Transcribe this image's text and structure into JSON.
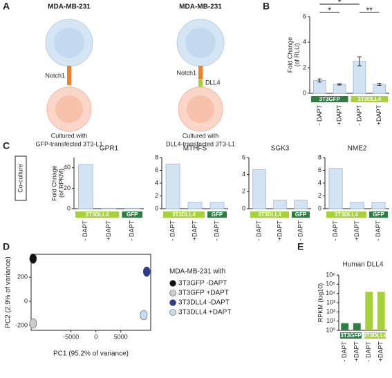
{
  "diagram": {
    "panel": "A",
    "cells": [
      {
        "title": "MDA-MB-231",
        "receptor": "Notch1",
        "caption": [
          "Cultured with",
          "GFP-transfected 3T3-L1"
        ]
      },
      {
        "title": "MDA-MB-231",
        "receptor": "Notch1",
        "ligand": "DLL4",
        "caption": [
          "Cultured with",
          "DLL4-transfected 3T3-L1"
        ]
      }
    ]
  },
  "side_label": "Co-culture",
  "chart_data": [
    {
      "type": "bar",
      "panel": "B",
      "y_label": [
        "Fold Change",
        "(of RLU)"
      ],
      "categories": [
        "- DAPT",
        "+DAPT",
        "- DAPT",
        "+DAPT"
      ],
      "values": [
        1.0,
        0.7,
        2.5,
        0.7
      ],
      "errors": [
        0.12,
        0.05,
        0.35,
        0.08
      ],
      "color": "#d3e3f4",
      "ylim": [
        0,
        6
      ],
      "yticks": [
        0,
        2,
        4,
        6
      ],
      "groups": [
        {
          "label": "3T3GFP",
          "color": "#2e7d43",
          "span": 2
        },
        {
          "label": "3T3DLL4",
          "color": "#a6d13c",
          "span": 2
        }
      ],
      "significance": [
        "*",
        "*",
        "**"
      ]
    },
    {
      "type": "bar",
      "panel": "C",
      "title": "GPR1",
      "y_label": [
        "Fold Chnage",
        "(of RPKM)"
      ],
      "categories": [
        "- DAPT",
        "+DAPT",
        "- DAPT"
      ],
      "values": [
        43,
        0.5,
        0.5
      ],
      "color": "#d3e3f4",
      "ylim": [
        0,
        50
      ],
      "yticks": [
        0,
        20,
        40
      ],
      "groups": [
        {
          "label": "3T3DLL4",
          "color": "#a6d13c",
          "span": 2
        },
        {
          "label": "GFP",
          "color": "#2e7d43",
          "span": 1
        }
      ]
    },
    {
      "type": "bar",
      "title": "MTHFS",
      "categories": [
        "- DAPT",
        "+DAPT",
        "- DAPT"
      ],
      "values": [
        7,
        1,
        1
      ],
      "color": "#d3e3f4",
      "ylim": [
        0,
        8
      ],
      "yticks": [
        0,
        2,
        4,
        6,
        8
      ],
      "groups": [
        {
          "label": "3T3DLL4",
          "color": "#a6d13c",
          "span": 2
        },
        {
          "label": "GFP",
          "color": "#2e7d43",
          "span": 1
        }
      ]
    },
    {
      "type": "bar",
      "title": "SGK3",
      "categories": [
        "- DAPT",
        "+DAPT",
        "- DAPT"
      ],
      "values": [
        4.6,
        1,
        1
      ],
      "color": "#d3e3f4",
      "ylim": [
        0,
        6
      ],
      "yticks": [
        0,
        2,
        4,
        6
      ],
      "groups": [
        {
          "label": "3T3DLL4",
          "color": "#a6d13c",
          "span": 2
        },
        {
          "label": "GFP",
          "color": "#2e7d43",
          "span": 1
        }
      ]
    },
    {
      "type": "bar",
      "title": "NME2",
      "categories": [
        "- DAPT",
        "+DAPT",
        "- DAPT"
      ],
      "values": [
        6.3,
        1,
        1
      ],
      "color": "#d3e3f4",
      "ylim": [
        0,
        8
      ],
      "yticks": [
        0,
        2,
        4,
        6,
        8
      ],
      "groups": [
        {
          "label": "3T3DLL4",
          "color": "#a6d13c",
          "span": 2
        },
        {
          "label": "GFP",
          "color": "#2e7d43",
          "span": 1
        }
      ]
    },
    {
      "type": "scatter",
      "panel": "D",
      "x_label": "PC1 (95.2% of variance)",
      "y_label": "PC2 (2.9% of variance)",
      "legend_title": "MDA-MB-231 with",
      "xlim": [
        -13000,
        11000
      ],
      "xticks": [
        -5000,
        0,
        5000
      ],
      "ylim": [
        -240,
        390
      ],
      "yticks": [
        -200,
        0,
        200
      ],
      "series": [
        {
          "name": "3T3GFP -DAPT",
          "color": "#111111",
          "x": [
            -12600
          ],
          "values": [
            354
          ]
        },
        {
          "name": "3T3GFP +DAPT",
          "color": "#cccccc",
          "x": [
            -12600
          ],
          "values": [
            -183
          ]
        },
        {
          "name": "3T3DLL4 -DAPT",
          "color": "#2b3f8c",
          "x": [
            10200
          ],
          "values": [
            246
          ]
        },
        {
          "name": "3T3DLL4 +DAPT",
          "color": "#c6dcf0",
          "x": [
            9600
          ],
          "values": [
            -114
          ]
        }
      ]
    },
    {
      "type": "bar",
      "panel": "E",
      "title": "Human DLL4",
      "y_label": [
        "RPKM (log10)"
      ],
      "log_scale": true,
      "categories": [
        "- DAPT",
        "+DAPT",
        "- DAPT",
        "+DAPT"
      ],
      "values": [
        6,
        6,
        15000,
        15000
      ],
      "colors": [
        "#2e7d43",
        "#2e7d43",
        "#a6d13c",
        "#a6d13c"
      ],
      "ylim": [
        1,
        1000000
      ],
      "yticks": [
        {
          "value": 1,
          "label": "10⁰"
        },
        {
          "value": 10,
          "label": "10¹"
        },
        {
          "value": 100,
          "label": "10²"
        },
        {
          "value": 1000,
          "label": "10³"
        },
        {
          "value": 10000,
          "label": "10⁴"
        },
        {
          "value": 100000,
          "label": "10⁵"
        },
        {
          "value": 1000000,
          "label": "10⁶"
        }
      ],
      "groups": [
        {
          "label": "3T3GFP",
          "color": "#2e7d43",
          "span": 2
        },
        {
          "label": "3T3DLL4",
          "color": "#a6d13c",
          "span": 2
        }
      ]
    }
  ]
}
